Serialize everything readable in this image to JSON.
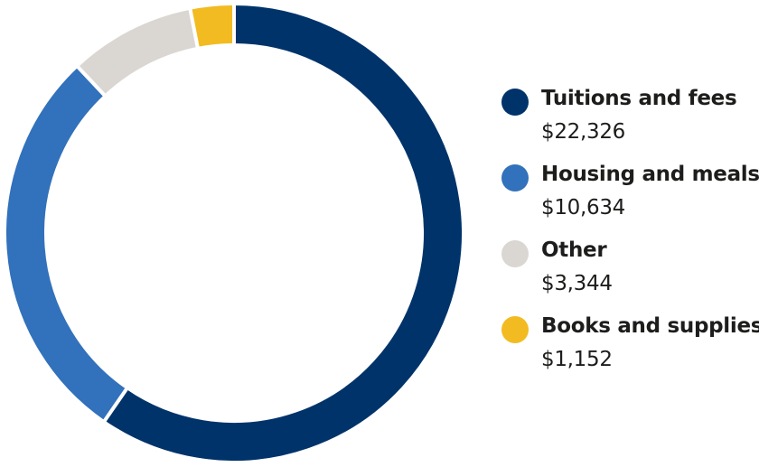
{
  "chart_data": {
    "type": "pie",
    "variant": "donut",
    "categories": [
      "Tuitions and fees",
      "Housing and meals",
      "Other",
      "Books and supplies"
    ],
    "values": [
      22326,
      10634,
      3344,
      1152
    ],
    "value_labels": [
      "$22,326",
      "$10,634",
      "$3,344",
      "$1,152"
    ],
    "colors": [
      "#00336a",
      "#3271bb",
      "#dad7d3",
      "#f2bb21"
    ],
    "start": "top",
    "direction": "clockwise",
    "legend": "right"
  }
}
